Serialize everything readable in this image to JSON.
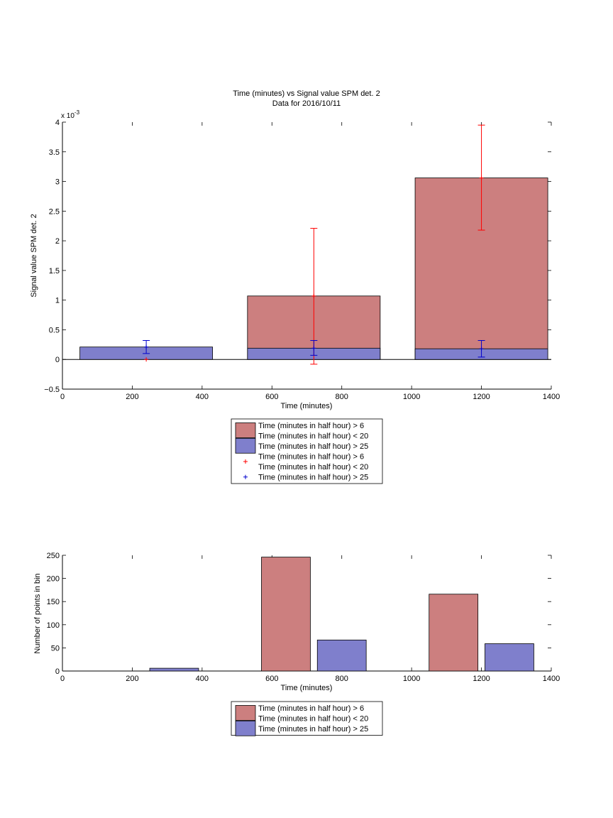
{
  "chart_data": [
    {
      "type": "bar",
      "title": "Time (minutes) vs Signal value SPM det. 2",
      "subtitle": "Data for 2016/10/11",
      "xlabel": "Time (minutes)",
      "ylabel": "Signal value SPM det. 2",
      "y_exponent_label": "x 10",
      "y_exponent_power": "-3",
      "xlim": [
        0,
        1400
      ],
      "ylim": [
        -0.5,
        4
      ],
      "x_ticks": [
        "0",
        "200",
        "400",
        "600",
        "800",
        "1000",
        "1200",
        "1400"
      ],
      "y_ticks": [
        "−0.5",
        "0",
        "0.5",
        "1",
        "1.5",
        "2",
        "2.5",
        "3",
        "3.5",
        "4"
      ],
      "grid": false,
      "legend_position": "below",
      "colors": {
        "red_bar": "#cc7f7f",
        "blue_bar": "#7f7fcc",
        "red_err": "#ff0000",
        "blue_err": "#0000cc"
      },
      "bins": [
        {
          "x_range": [
            50,
            430
          ],
          "center": 240,
          "red": {
            "value": 0.0,
            "err_low": 0.0,
            "err_high": 0.0
          },
          "blue": {
            "value": 0.21,
            "err_low": 0.1,
            "err_high": 0.32
          }
        },
        {
          "x_range": [
            530,
            910
          ],
          "center": 720,
          "red": {
            "value": 1.07,
            "err_low": -0.08,
            "err_high": 2.21
          },
          "blue": {
            "value": 0.19,
            "err_low": 0.07,
            "err_high": 0.32
          }
        },
        {
          "x_range": [
            1010,
            1390
          ],
          "center": 1200,
          "red": {
            "value": 3.06,
            "err_low": 2.18,
            "err_high": 3.95
          },
          "blue": {
            "value": 0.18,
            "err_low": 0.04,
            "err_high": 0.32
          }
        }
      ],
      "legend": [
        {
          "kind": "patch",
          "color": "red",
          "lines": [
            "Time (minutes in half hour) > 6",
            "Time (minutes in half hour) < 20"
          ]
        },
        {
          "kind": "patch",
          "color": "blue",
          "lines": [
            "Time (minutes in half hour) > 25"
          ]
        },
        {
          "kind": "marker",
          "color": "red",
          "lines": [
            "Time (minutes in half hour) > 6",
            "Time (minutes in half hour) < 20"
          ]
        },
        {
          "kind": "marker",
          "color": "blue",
          "lines": [
            "Time (minutes in half hour) > 25"
          ]
        }
      ]
    },
    {
      "type": "bar",
      "xlabel": "Time (minutes)",
      "ylabel": "Number of points in bin",
      "xlim": [
        0,
        1400
      ],
      "ylim": [
        0,
        250
      ],
      "x_ticks": [
        "0",
        "200",
        "400",
        "600",
        "800",
        "1000",
        "1200",
        "1400"
      ],
      "y_ticks": [
        "0",
        "50",
        "100",
        "150",
        "200",
        "250"
      ],
      "grid": false,
      "legend_position": "below",
      "bars": [
        {
          "series": "blue",
          "x_range": [
            250,
            390
          ],
          "value": 6
        },
        {
          "series": "red",
          "x_range": [
            570,
            710
          ],
          "value": 246
        },
        {
          "series": "blue",
          "x_range": [
            730,
            870
          ],
          "value": 67
        },
        {
          "series": "red",
          "x_range": [
            1050,
            1190
          ],
          "value": 166
        },
        {
          "series": "blue",
          "x_range": [
            1210,
            1350
          ],
          "value": 59
        }
      ],
      "legend": [
        {
          "kind": "patch",
          "color": "red",
          "lines": [
            "Time (minutes in half hour) > 6",
            "Time (minutes in half hour) < 20"
          ]
        },
        {
          "kind": "patch",
          "color": "blue",
          "lines": [
            "Time (minutes in half hour) > 25"
          ]
        }
      ]
    }
  ]
}
